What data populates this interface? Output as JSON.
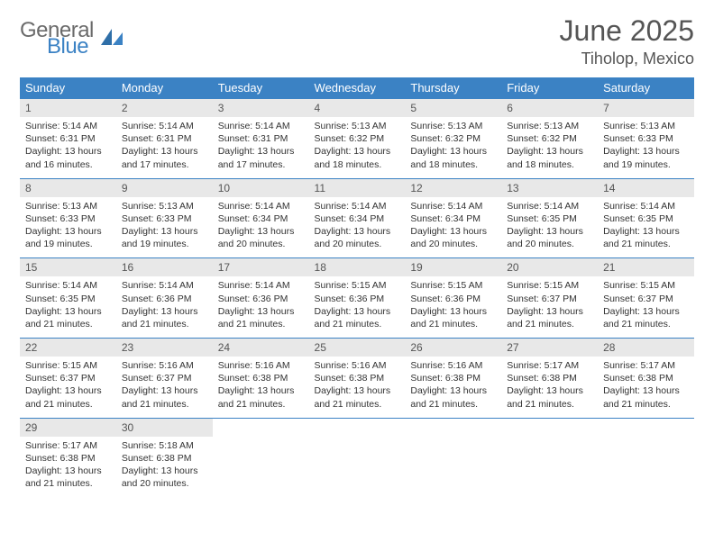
{
  "logo": {
    "text_gray": "General",
    "text_blue": "Blue"
  },
  "title": "June 2025",
  "location": "Tiholop, Mexico",
  "colors": {
    "header_bg": "#3b82c4",
    "header_fg": "#ffffff",
    "daynum_bg": "#e8e8e8",
    "text_muted": "#555555",
    "row_border": "#3b82c4"
  },
  "weekdays": [
    "Sunday",
    "Monday",
    "Tuesday",
    "Wednesday",
    "Thursday",
    "Friday",
    "Saturday"
  ],
  "days": [
    {
      "n": "1",
      "sr": "5:14 AM",
      "ss": "6:31 PM",
      "dl": "13 hours and 16 minutes."
    },
    {
      "n": "2",
      "sr": "5:14 AM",
      "ss": "6:31 PM",
      "dl": "13 hours and 17 minutes."
    },
    {
      "n": "3",
      "sr": "5:14 AM",
      "ss": "6:31 PM",
      "dl": "13 hours and 17 minutes."
    },
    {
      "n": "4",
      "sr": "5:13 AM",
      "ss": "6:32 PM",
      "dl": "13 hours and 18 minutes."
    },
    {
      "n": "5",
      "sr": "5:13 AM",
      "ss": "6:32 PM",
      "dl": "13 hours and 18 minutes."
    },
    {
      "n": "6",
      "sr": "5:13 AM",
      "ss": "6:32 PM",
      "dl": "13 hours and 18 minutes."
    },
    {
      "n": "7",
      "sr": "5:13 AM",
      "ss": "6:33 PM",
      "dl": "13 hours and 19 minutes."
    },
    {
      "n": "8",
      "sr": "5:13 AM",
      "ss": "6:33 PM",
      "dl": "13 hours and 19 minutes."
    },
    {
      "n": "9",
      "sr": "5:13 AM",
      "ss": "6:33 PM",
      "dl": "13 hours and 19 minutes."
    },
    {
      "n": "10",
      "sr": "5:14 AM",
      "ss": "6:34 PM",
      "dl": "13 hours and 20 minutes."
    },
    {
      "n": "11",
      "sr": "5:14 AM",
      "ss": "6:34 PM",
      "dl": "13 hours and 20 minutes."
    },
    {
      "n": "12",
      "sr": "5:14 AM",
      "ss": "6:34 PM",
      "dl": "13 hours and 20 minutes."
    },
    {
      "n": "13",
      "sr": "5:14 AM",
      "ss": "6:35 PM",
      "dl": "13 hours and 20 minutes."
    },
    {
      "n": "14",
      "sr": "5:14 AM",
      "ss": "6:35 PM",
      "dl": "13 hours and 21 minutes."
    },
    {
      "n": "15",
      "sr": "5:14 AM",
      "ss": "6:35 PM",
      "dl": "13 hours and 21 minutes."
    },
    {
      "n": "16",
      "sr": "5:14 AM",
      "ss": "6:36 PM",
      "dl": "13 hours and 21 minutes."
    },
    {
      "n": "17",
      "sr": "5:14 AM",
      "ss": "6:36 PM",
      "dl": "13 hours and 21 minutes."
    },
    {
      "n": "18",
      "sr": "5:15 AM",
      "ss": "6:36 PM",
      "dl": "13 hours and 21 minutes."
    },
    {
      "n": "19",
      "sr": "5:15 AM",
      "ss": "6:36 PM",
      "dl": "13 hours and 21 minutes."
    },
    {
      "n": "20",
      "sr": "5:15 AM",
      "ss": "6:37 PM",
      "dl": "13 hours and 21 minutes."
    },
    {
      "n": "21",
      "sr": "5:15 AM",
      "ss": "6:37 PM",
      "dl": "13 hours and 21 minutes."
    },
    {
      "n": "22",
      "sr": "5:15 AM",
      "ss": "6:37 PM",
      "dl": "13 hours and 21 minutes."
    },
    {
      "n": "23",
      "sr": "5:16 AM",
      "ss": "6:37 PM",
      "dl": "13 hours and 21 minutes."
    },
    {
      "n": "24",
      "sr": "5:16 AM",
      "ss": "6:38 PM",
      "dl": "13 hours and 21 minutes."
    },
    {
      "n": "25",
      "sr": "5:16 AM",
      "ss": "6:38 PM",
      "dl": "13 hours and 21 minutes."
    },
    {
      "n": "26",
      "sr": "5:16 AM",
      "ss": "6:38 PM",
      "dl": "13 hours and 21 minutes."
    },
    {
      "n": "27",
      "sr": "5:17 AM",
      "ss": "6:38 PM",
      "dl": "13 hours and 21 minutes."
    },
    {
      "n": "28",
      "sr": "5:17 AM",
      "ss": "6:38 PM",
      "dl": "13 hours and 21 minutes."
    },
    {
      "n": "29",
      "sr": "5:17 AM",
      "ss": "6:38 PM",
      "dl": "13 hours and 21 minutes."
    },
    {
      "n": "30",
      "sr": "5:18 AM",
      "ss": "6:38 PM",
      "dl": "13 hours and 20 minutes."
    }
  ],
  "labels": {
    "sunrise": "Sunrise: ",
    "sunset": "Sunset: ",
    "daylight": "Daylight: "
  }
}
